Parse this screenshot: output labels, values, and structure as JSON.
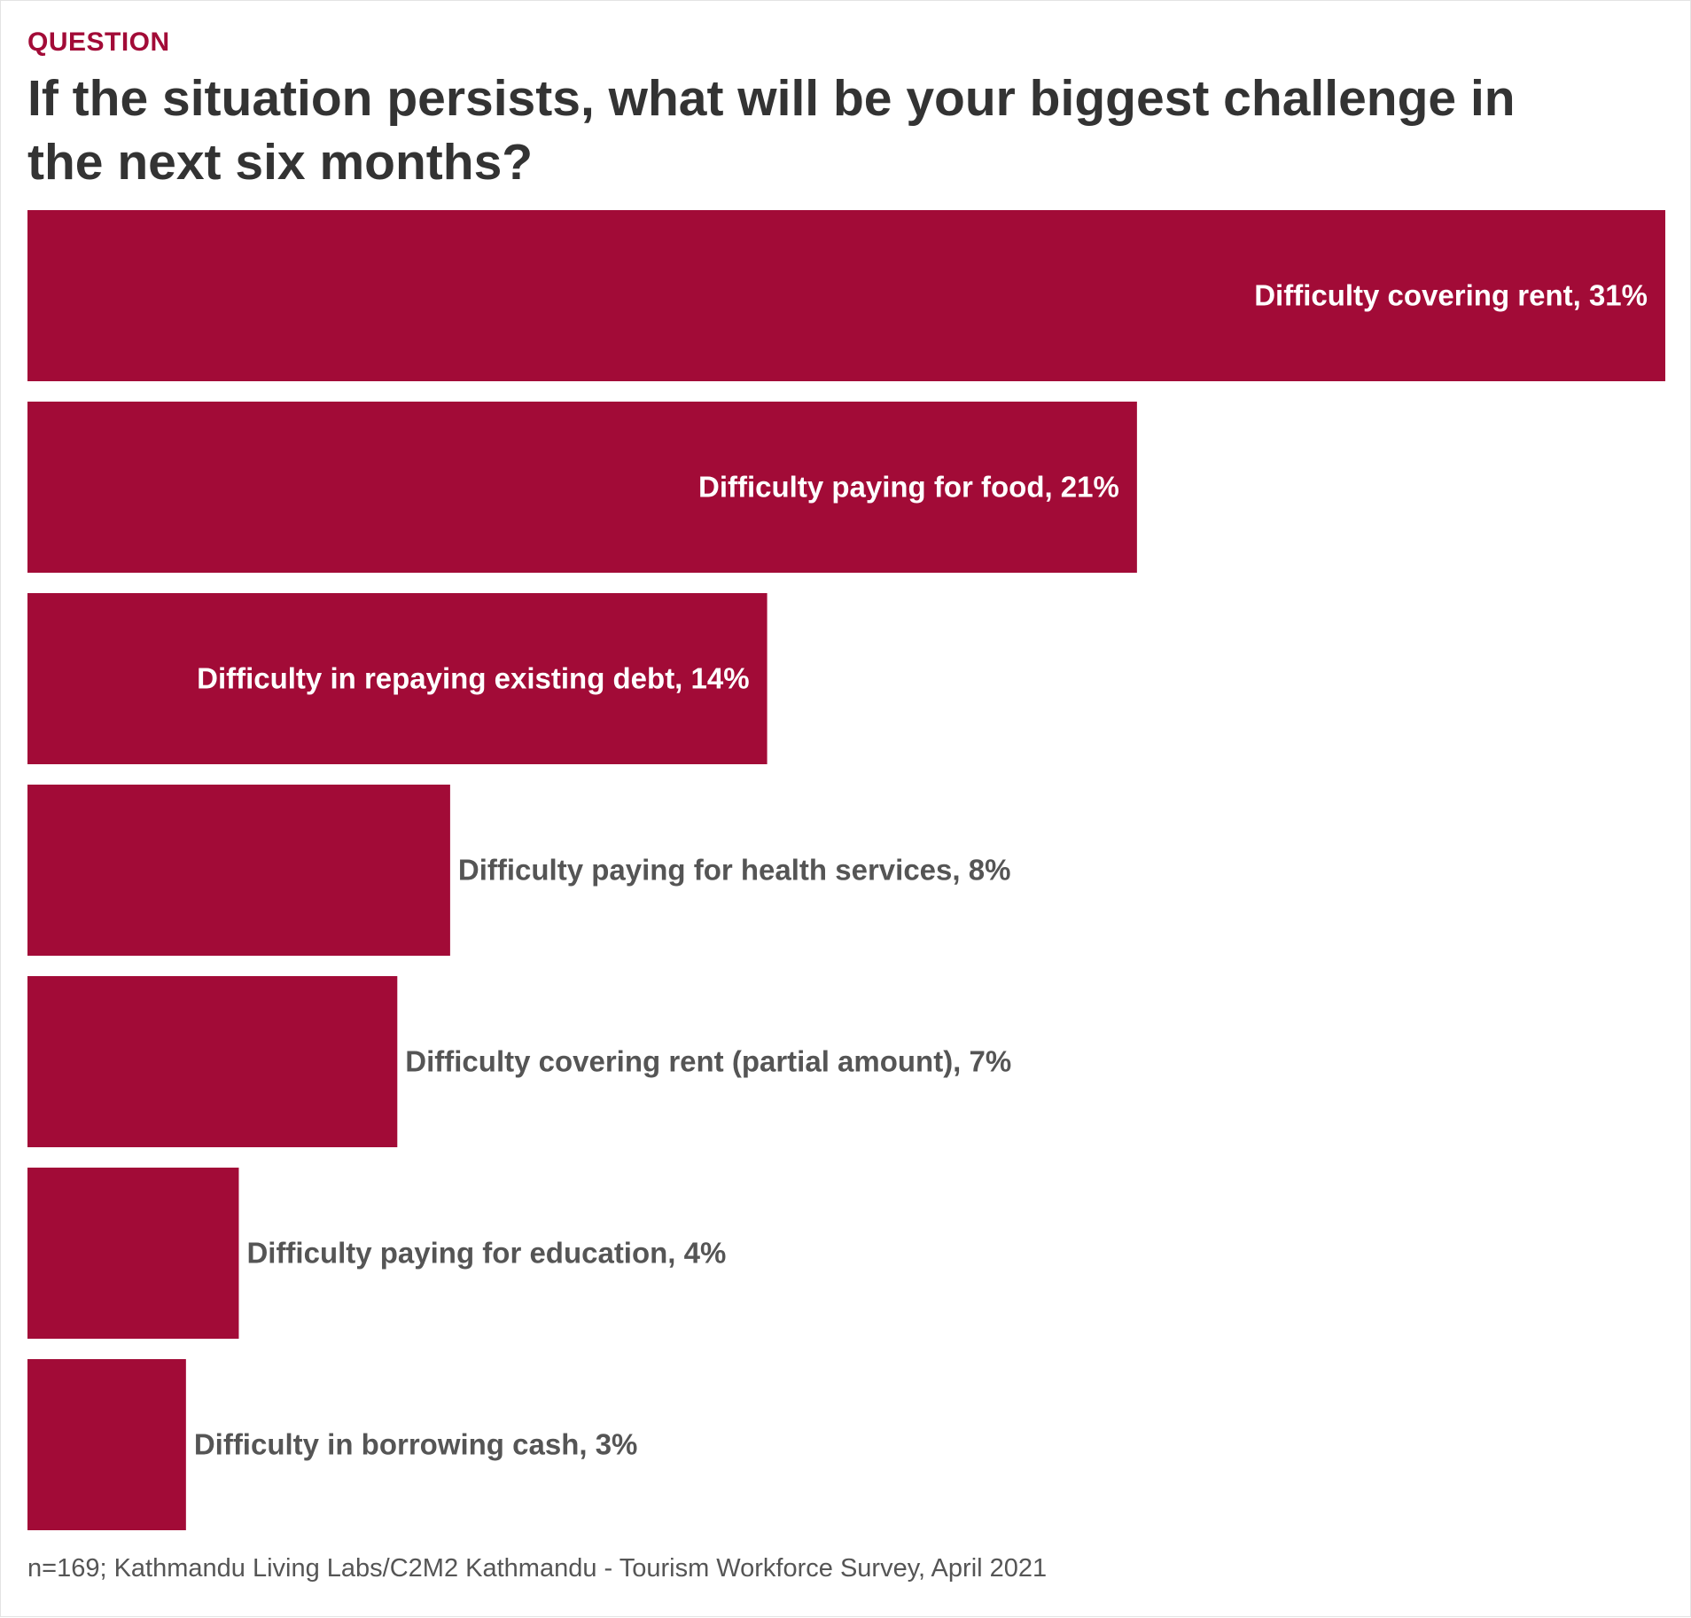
{
  "kicker": "QUESTION",
  "title": "If the situation persists, what will be your biggest challenge in the next six months?",
  "footer": "n=169; Kathmandu Living Labs/C2M2 Kathmandu - Tourism Workforce Survey, April 2021",
  "colors": {
    "bar": "#a20b37",
    "label_inside": "#ffffff",
    "label_outside": "#555555"
  },
  "chart_data": {
    "type": "bar",
    "orientation": "horizontal",
    "categories": [
      "Difficulty covering rent",
      "Difficulty paying for food",
      "Difficulty in repaying existing debt",
      "Difficulty paying for health services",
      "Difficulty covering rent (partial amount)",
      "Difficulty paying for education",
      "Difficulty in borrowing cash"
    ],
    "values": [
      31,
      21,
      14,
      8,
      7,
      4,
      3
    ],
    "labels": [
      "Difficulty covering rent, 31%",
      "Difficulty paying for food, 21%",
      "Difficulty in repaying existing debt, 14%",
      "Difficulty paying for health services, 8%",
      "Difficulty covering rent (partial amount), 7%",
      "Difficulty paying for education, 4%",
      "Difficulty in borrowing cash, 3%"
    ],
    "unit": "%",
    "grid": false,
    "legend": "none"
  }
}
